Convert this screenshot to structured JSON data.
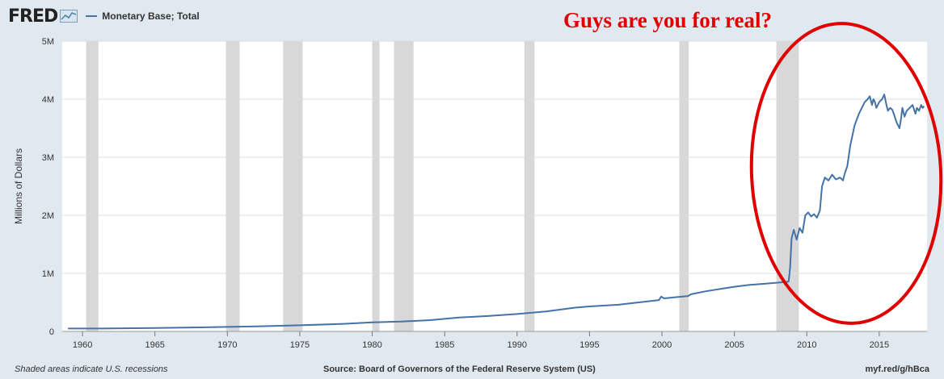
{
  "header": {
    "logo": "FRED",
    "legend_label": "Monetary Base; Total"
  },
  "annotation": "Guys are you for real?",
  "footer": {
    "note": "Shaded areas indicate U.S. recessions",
    "source": "Source: Board of Governors of the Federal Reserve System (US)",
    "url": "myf.red/g/hBca"
  },
  "colors": {
    "line": "#4572a7",
    "recession": "#d8d8d8",
    "annotation": "#e00000",
    "plot_bg": "#ffffff",
    "grid": "#dddddd"
  },
  "chart_data": {
    "type": "line",
    "title": "",
    "xlabel": "",
    "ylabel": "Millions of Dollars",
    "xlim": [
      1958.6,
      2018.3
    ],
    "ylim": [
      0,
      5000000
    ],
    "x_ticks": [
      1960,
      1965,
      1970,
      1975,
      1980,
      1985,
      1990,
      1995,
      2000,
      2005,
      2010,
      2015
    ],
    "x_tick_labels": [
      "1960",
      "1965",
      "1970",
      "1975",
      "1980",
      "1985",
      "1990",
      "1995",
      "2000",
      "2005",
      "2010",
      "2015"
    ],
    "y_ticks": [
      0,
      1000000,
      2000000,
      3000000,
      4000000,
      5000000
    ],
    "y_tick_labels": [
      "0",
      "1M",
      "2M",
      "3M",
      "4M",
      "5M"
    ],
    "grid": true,
    "legend": "top-left",
    "recessions": [
      [
        1960.25,
        1961.1
      ],
      [
        1969.9,
        1970.85
      ],
      [
        1973.85,
        1975.2
      ],
      [
        1980.0,
        1980.5
      ],
      [
        1981.5,
        1982.85
      ],
      [
        1990.5,
        1991.2
      ],
      [
        2001.2,
        2001.85
      ],
      [
        2007.9,
        2009.45
      ]
    ],
    "series": [
      {
        "name": "Monetary Base; Total",
        "x": [
          1959.0,
          1960,
          1962,
          1965,
          1968,
          1970,
          1972,
          1975,
          1978,
          1980,
          1982,
          1984,
          1986,
          1988,
          1990,
          1992,
          1994,
          1995,
          1997,
          1999.8,
          1999.95,
          2000.15,
          2001,
          2001.8,
          2002,
          2003,
          2004,
          2005,
          2006,
          2007,
          2008,
          2008.5,
          2008.75,
          2008.85,
          2008.95,
          2009.1,
          2009.3,
          2009.5,
          2009.7,
          2009.9,
          2010.1,
          2010.3,
          2010.5,
          2010.7,
          2010.9,
          2011.05,
          2011.25,
          2011.5,
          2011.75,
          2012.0,
          2012.3,
          2012.5,
          2012.6,
          2012.8,
          2013.0,
          2013.3,
          2013.6,
          2013.8,
          2014.0,
          2014.2,
          2014.35,
          2014.5,
          2014.6,
          2014.7,
          2014.8,
          2014.9,
          2015.0,
          2015.2,
          2015.35,
          2015.5,
          2015.6,
          2015.75,
          2015.9,
          2016.0,
          2016.2,
          2016.4,
          2016.5,
          2016.6,
          2016.75,
          2016.9,
          2017.1,
          2017.3,
          2017.5,
          2017.6,
          2017.75,
          2017.9,
          2018.0,
          2018.1
        ],
        "values": [
          50000,
          50000,
          52000,
          60000,
          70000,
          78000,
          88000,
          105000,
          130000,
          155000,
          170000,
          195000,
          240000,
          265000,
          300000,
          345000,
          410000,
          430000,
          460000,
          540000,
          600000,
          570000,
          590000,
          610000,
          640000,
          690000,
          730000,
          770000,
          800000,
          820000,
          840000,
          850000,
          860000,
          1100000,
          1600000,
          1750000,
          1580000,
          1780000,
          1700000,
          2000000,
          2050000,
          1980000,
          2020000,
          1960000,
          2080000,
          2500000,
          2650000,
          2600000,
          2700000,
          2620000,
          2650000,
          2600000,
          2700000,
          2850000,
          3200000,
          3550000,
          3750000,
          3850000,
          3950000,
          4000000,
          4050000,
          3900000,
          4000000,
          3950000,
          3850000,
          3900000,
          3950000,
          4000000,
          4080000,
          3900000,
          3800000,
          3850000,
          3820000,
          3750000,
          3600000,
          3500000,
          3650000,
          3850000,
          3700000,
          3800000,
          3850000,
          3900000,
          3750000,
          3850000,
          3800000,
          3900000,
          3850000,
          3880000
        ]
      }
    ]
  }
}
